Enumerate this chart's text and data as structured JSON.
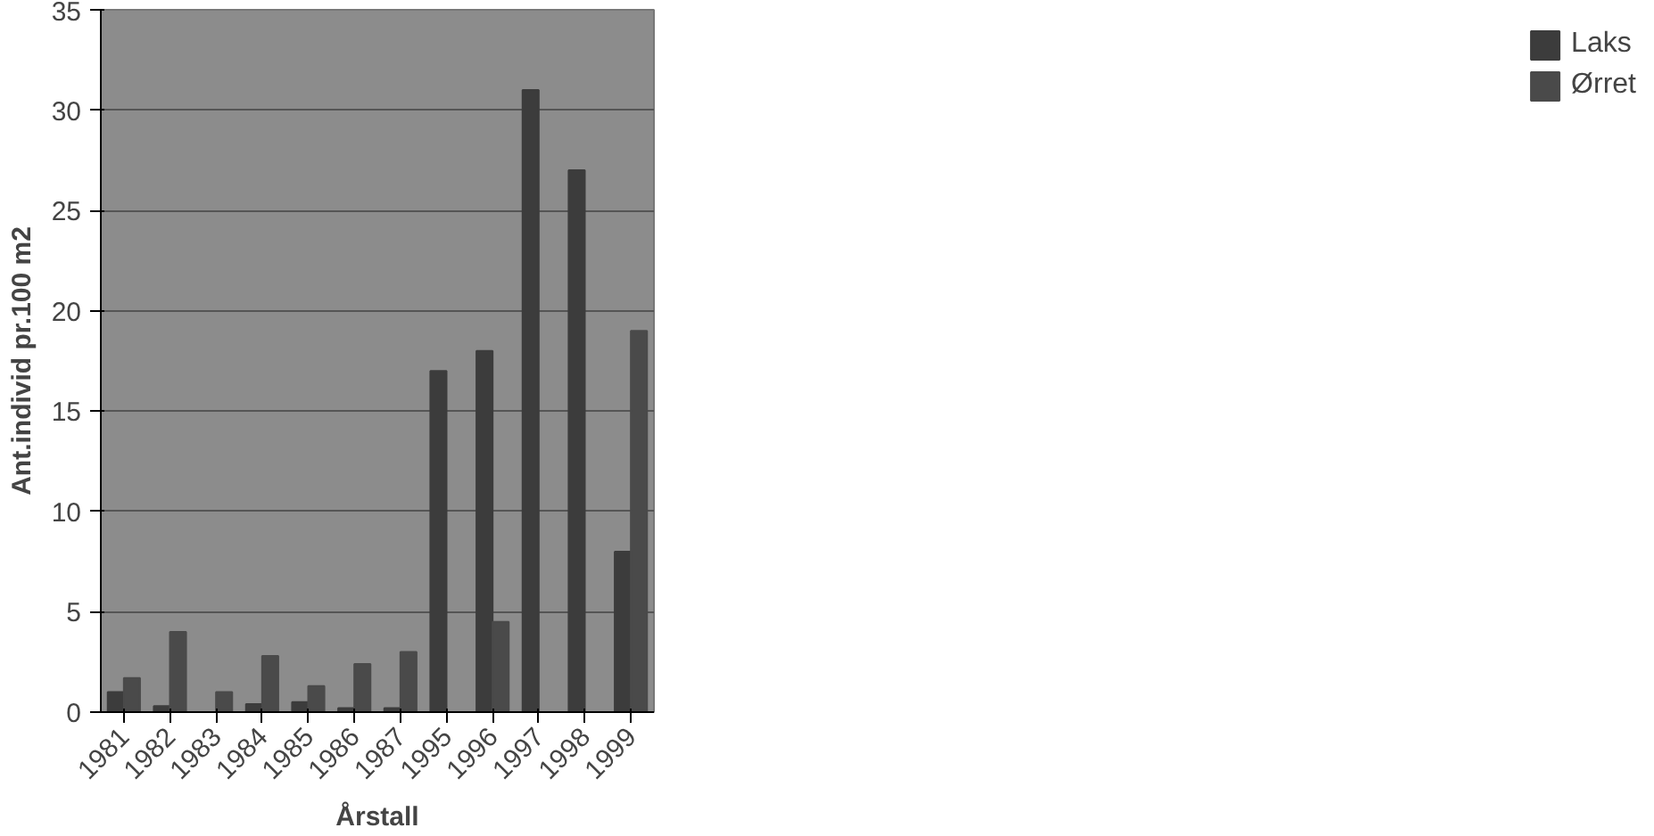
{
  "chart_data": {
    "type": "bar",
    "xlabel": "Årstall",
    "ylabel": "Ant.individ pr.100 m2",
    "categories": [
      "1981",
      "1982",
      "1983",
      "1984",
      "1985",
      "1986",
      "1987",
      "1995",
      "1996",
      "1997",
      "1998",
      "1999"
    ],
    "series": [
      {
        "name": "Laks",
        "color": "#3c3c3c",
        "values": [
          1.0,
          0.3,
          0,
          0.4,
          0.5,
          0.2,
          0.2,
          17,
          18,
          31,
          27,
          8
        ]
      },
      {
        "name": "Ørret",
        "color": "#4a4a4a",
        "values": [
          1.7,
          4.0,
          1.0,
          2.8,
          1.3,
          2.4,
          3.0,
          0,
          4.5,
          0,
          0,
          19
        ]
      }
    ],
    "ylim": [
      0,
      35
    ],
    "yticks": [
      0,
      5,
      10,
      15,
      20,
      25,
      30,
      35
    ],
    "grid": "y",
    "legend": "right"
  }
}
